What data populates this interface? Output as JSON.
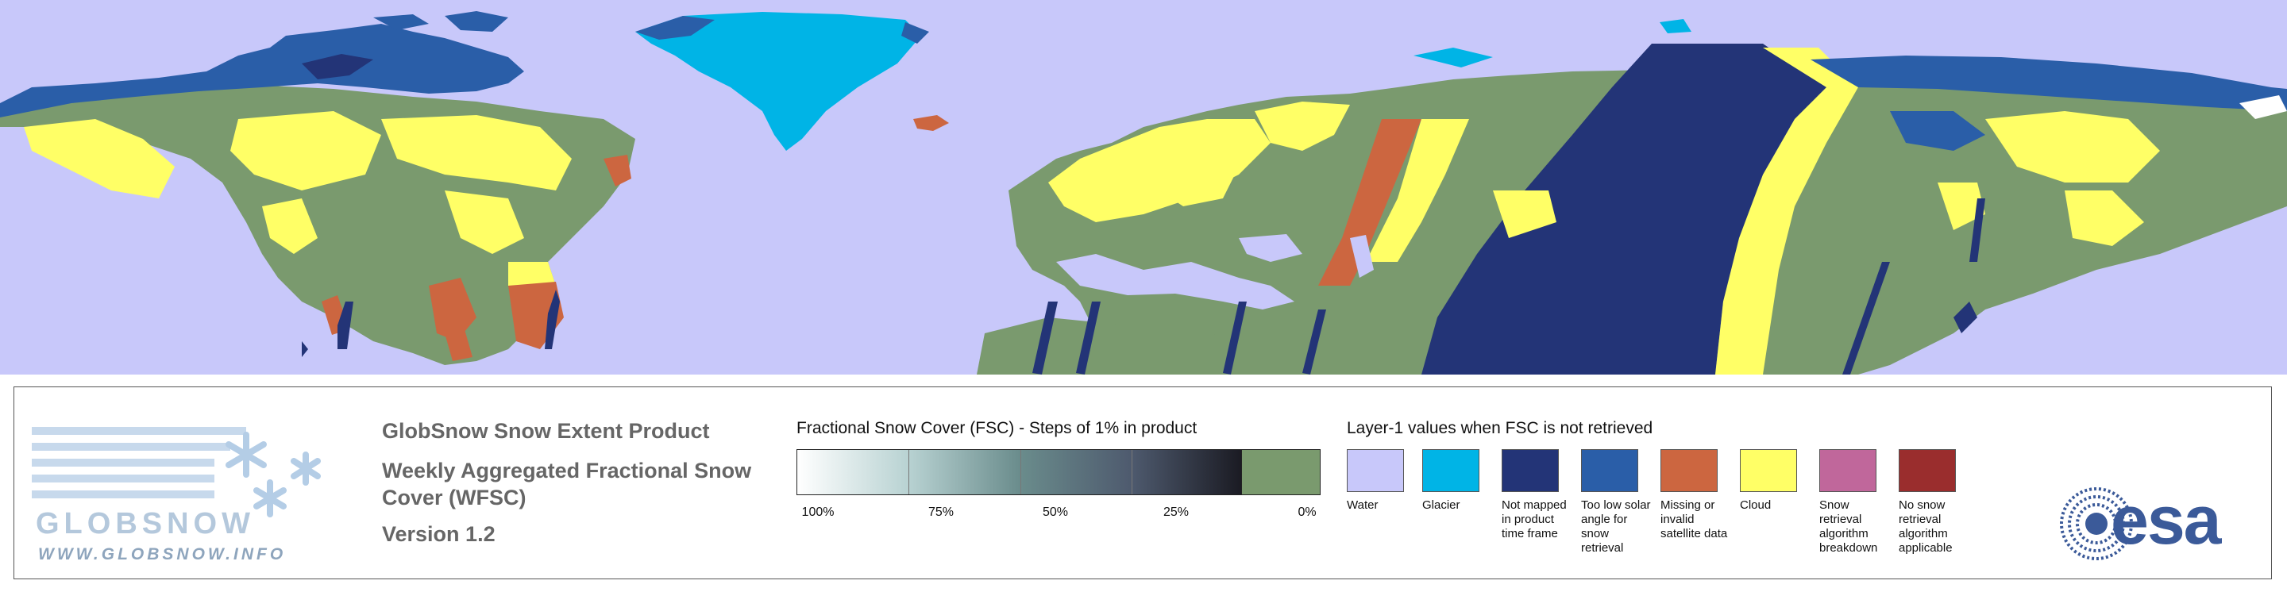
{
  "product": {
    "title": "GlobSnow Snow Extent Product",
    "subtitle": "Weekly Aggregated Fractional Snow Cover (WFSC)",
    "version": "Version 1.2"
  },
  "logo": {
    "name": "GLOBSNOW",
    "url": "WWW.GLOBSNOW.INFO"
  },
  "fsc_scale": {
    "title": "Fractional Snow Cover (FSC) - Steps of 1% in product",
    "ticks": [
      "100%",
      "75%",
      "50%",
      "25%",
      "0%"
    ]
  },
  "layer1": {
    "title": "Layer-1 values when FSC is not retrieved",
    "items": [
      {
        "label": "Water",
        "color": "#c8c8fa"
      },
      {
        "label": "Glacier",
        "color": "#00b4e6"
      },
      {
        "label": "Not mapped in product time frame",
        "color": "#233477"
      },
      {
        "label": "Too low solar angle for snow retrieval",
        "color": "#2a5ea8"
      },
      {
        "label": "Missing or invalid satellite data",
        "color": "#cc6640"
      },
      {
        "label": "Cloud",
        "color": "#ffff66"
      },
      {
        "label": "Snow retrieval algorithm breakdown",
        "color": "#c0679b"
      },
      {
        "label": "No snow retrieval algorithm applicable",
        "color": "#9a2d2d"
      }
    ]
  },
  "colors": {
    "snow_free": "#7a9a6e",
    "water": "#c8c8fa"
  },
  "esa_logo": "esa"
}
